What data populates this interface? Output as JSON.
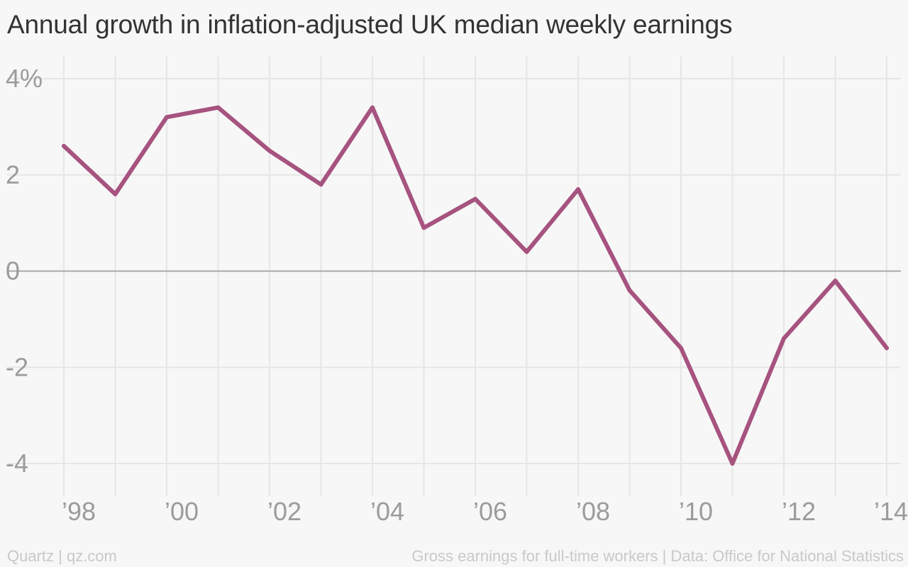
{
  "chart_data": {
    "type": "line",
    "title": "Annual growth in inflation-adjusted UK median weekly earnings",
    "xlabel": "",
    "ylabel": "",
    "x": [
      1998,
      1999,
      2000,
      2001,
      2002,
      2003,
      2004,
      2005,
      2006,
      2007,
      2008,
      2009,
      2010,
      2011,
      2012,
      2013,
      2014
    ],
    "series": [
      {
        "values": [
          2.6,
          1.6,
          3.2,
          3.4,
          2.5,
          1.8,
          3.4,
          0.9,
          1.5,
          0.4,
          1.7,
          -0.4,
          -1.6,
          -4.0,
          -1.4,
          -0.2,
          -1.6
        ],
        "color": "#a6537f"
      }
    ],
    "xticks": [
      1998,
      2000,
      2002,
      2004,
      2006,
      2008,
      2010,
      2012,
      2014
    ],
    "xtick_labels": [
      "’98",
      "’00",
      "’02",
      "’04",
      "’06",
      "’08",
      "’10",
      "’12",
      "’14"
    ],
    "yticks": [
      4,
      2,
      0,
      -2,
      -4
    ],
    "ytick_labels": [
      "4%",
      "2",
      "0",
      "-2",
      "-4"
    ],
    "xlim": [
      1998,
      2014
    ],
    "ylim": [
      -4,
      4
    ],
    "grid": true,
    "zero_line": true
  },
  "footer": {
    "source_left": "Quartz | qz.com",
    "source_right": "Gross earnings for full-time workers | Data: Office for National Statistics"
  }
}
